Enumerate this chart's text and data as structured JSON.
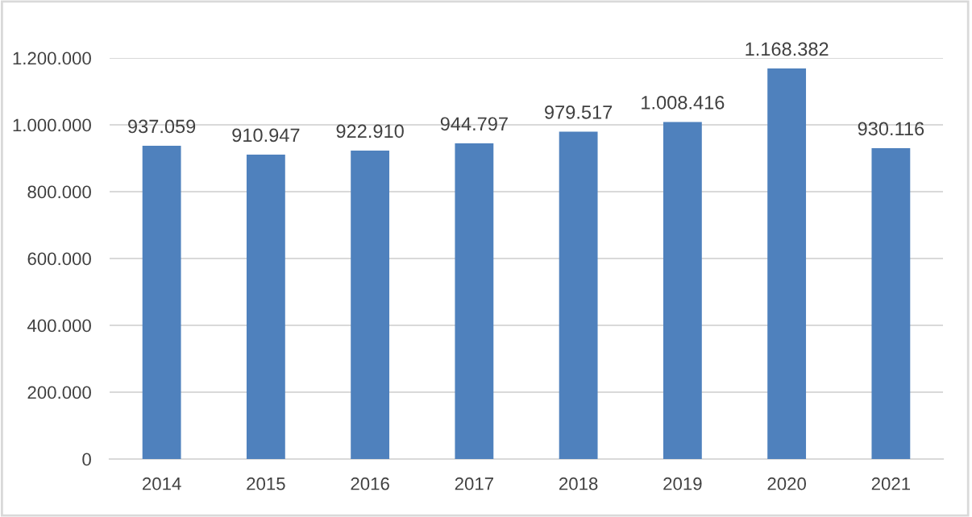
{
  "chart_data": {
    "type": "bar",
    "categories": [
      "2014",
      "2015",
      "2016",
      "2017",
      "2018",
      "2019",
      "2020",
      "2021"
    ],
    "values": [
      937059,
      910947,
      922910,
      944797,
      979517,
      1008416,
      1168382,
      930116
    ],
    "value_labels": [
      "937.059",
      "910.947",
      "922.910",
      "944.797",
      "979.517",
      "1.008.416",
      "1.168.382",
      "930.116"
    ],
    "color": "#4f81bd",
    "ylim": [
      0,
      1200000
    ],
    "yticks": [
      {
        "value": 0,
        "label": "0"
      },
      {
        "value": 200000,
        "label": "200.000"
      },
      {
        "value": 400000,
        "label": "400.000"
      },
      {
        "value": 600000,
        "label": "600.000"
      },
      {
        "value": 800000,
        "label": "800.000"
      },
      {
        "value": 1000000,
        "label": "1.000.000"
      },
      {
        "value": 1200000,
        "label": "1.200.000"
      }
    ],
    "grid": "y"
  }
}
